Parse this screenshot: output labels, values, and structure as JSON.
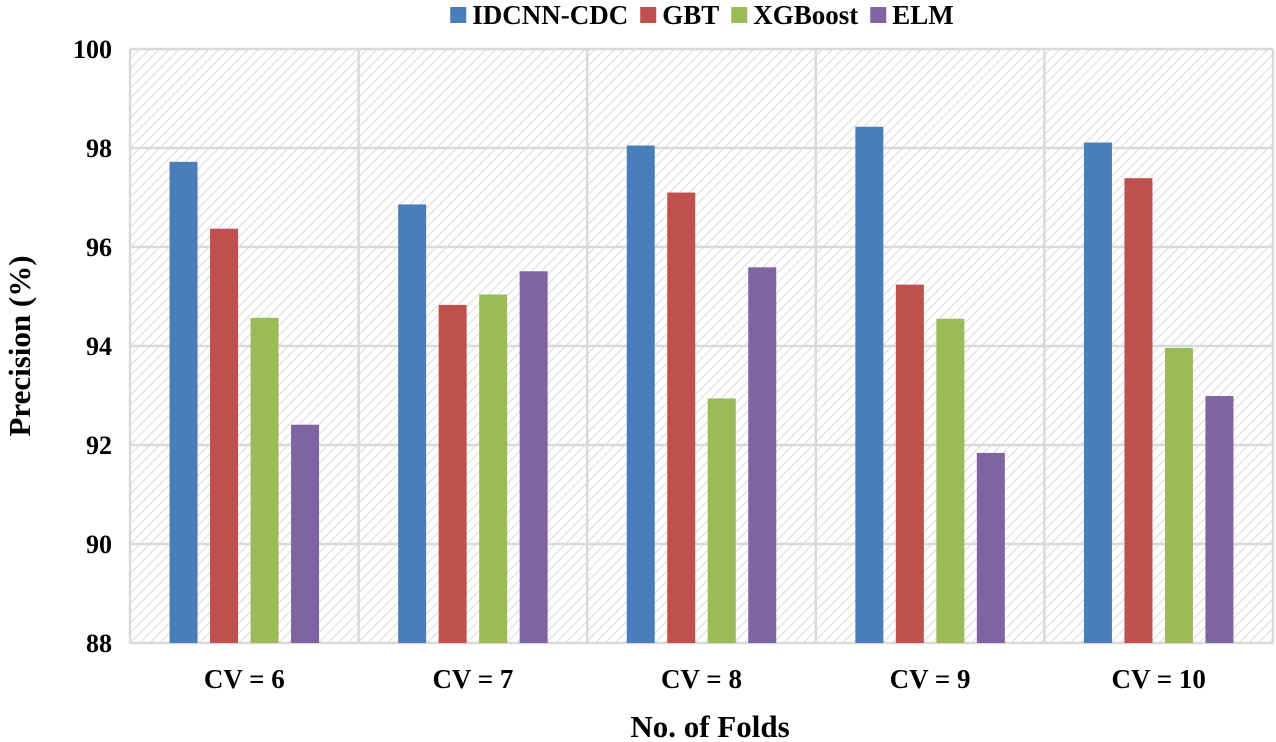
{
  "chart_data": {
    "type": "bar",
    "xlabel": "No. of Folds",
    "ylabel": "Precision (%)",
    "ylim": [
      88,
      100
    ],
    "yticks": [
      "88",
      "90",
      "92",
      "94",
      "96",
      "98",
      "100"
    ],
    "categories": [
      "CV = 6",
      "CV = 7",
      "CV = 8",
      "CV = 9",
      "CV = 10"
    ],
    "grid": true,
    "legend_position": "top",
    "series": [
      {
        "name": "IDCNN-CDC",
        "color": "#4a7ebb",
        "values": [
          97.72,
          96.86,
          98.05,
          98.43,
          98.11
        ]
      },
      {
        "name": "GBT",
        "color": "#c0504d",
        "values": [
          96.37,
          94.83,
          97.1,
          95.24,
          97.39
        ]
      },
      {
        "name": "XGBoost",
        "color": "#9bbb59",
        "values": [
          94.57,
          95.04,
          92.94,
          94.55,
          93.96
        ]
      },
      {
        "name": "ELM",
        "color": "#8064a2",
        "values": [
          92.41,
          95.51,
          95.59,
          91.84,
          92.99
        ]
      }
    ]
  }
}
